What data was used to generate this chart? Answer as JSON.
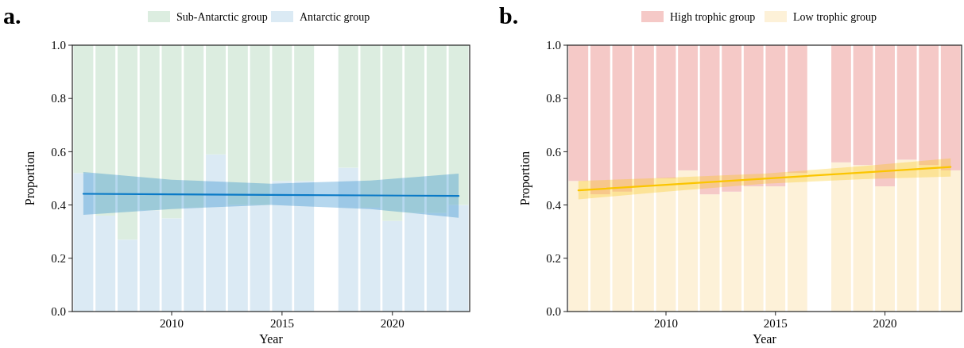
{
  "chart_data": [
    {
      "type": "bar",
      "title": "a.",
      "stacked": true,
      "legend": "top",
      "xlabel": "Year",
      "ylabel": "Proportion",
      "x": [
        2006,
        2007,
        2008,
        2009,
        2010,
        2011,
        2012,
        2013,
        2014,
        2015,
        2016,
        2017,
        2018,
        2019,
        2020,
        2021,
        2022,
        2023
      ],
      "xlim": [
        2005.5,
        2023.5
      ],
      "xticks": [
        2010,
        2015,
        2020
      ],
      "ylim": [
        0,
        1
      ],
      "yticks": [
        {
          "value": 0,
          "label": "0.0"
        },
        {
          "value": 0.2,
          "label": "0.2"
        },
        {
          "value": 0.4,
          "label": "0.4"
        },
        {
          "value": 0.6,
          "label": "0.6"
        },
        {
          "value": 0.8,
          "label": "0.8"
        },
        {
          "value": 1,
          "label": "1.0"
        }
      ],
      "series": [
        {
          "name": "Antarctic group",
          "color": "#dbeaf4",
          "values": [
            0.52,
            0.36,
            0.27,
            0.38,
            0.35,
            0.39,
            0.59,
            0.4,
            0.4,
            0.49,
            0.49,
            null,
            0.54,
            0.39,
            0.34,
            0.37,
            0.37,
            0.4
          ]
        },
        {
          "name": "Sub-Antarctic group",
          "color": "#dcede0",
          "values": [
            0.48,
            0.64,
            0.73,
            0.62,
            0.65,
            0.61,
            0.41,
            0.6,
            0.6,
            0.51,
            0.51,
            null,
            0.46,
            0.61,
            0.66,
            0.63,
            0.63,
            0.6
          ]
        },
        {
          "type": "line",
          "color": "#0a7ac7",
          "x": [
            2006,
            2010,
            2014.5,
            2019,
            2023
          ],
          "values": [
            0.442,
            0.44,
            0.438,
            0.436,
            0.434
          ],
          "lower": [
            0.363,
            0.385,
            0.4,
            0.385,
            0.352
          ],
          "upper": [
            0.524,
            0.495,
            0.48,
            0.492,
            0.518
          ]
        }
      ]
    },
    {
      "type": "bar",
      "title": "b.",
      "stacked": true,
      "legend": "top",
      "xlabel": "Year",
      "ylabel": "Proportion",
      "x": [
        2006,
        2007,
        2008,
        2009,
        2010,
        2011,
        2012,
        2013,
        2014,
        2015,
        2016,
        2017,
        2018,
        2019,
        2020,
        2021,
        2022,
        2023
      ],
      "xlim": [
        2005.5,
        2023.5
      ],
      "xticks": [
        2010,
        2015,
        2020
      ],
      "ylim": [
        0,
        1
      ],
      "yticks": [
        {
          "value": 0,
          "label": "0.0"
        },
        {
          "value": 0.2,
          "label": "0.2"
        },
        {
          "value": 0.4,
          "label": "0.4"
        },
        {
          "value": 0.6,
          "label": "0.6"
        },
        {
          "value": 0.8,
          "label": "0.8"
        },
        {
          "value": 1,
          "label": "1.0"
        }
      ],
      "series": [
        {
          "name": "Low trophic group",
          "color": "#fdf1d8",
          "values": [
            0.49,
            0.44,
            0.45,
            0.47,
            0.5,
            0.53,
            0.44,
            0.45,
            0.47,
            0.47,
            0.52,
            null,
            0.56,
            0.55,
            0.47,
            0.57,
            0.55,
            0.53
          ]
        },
        {
          "name": "High trophic group",
          "color": "#f5c9c7",
          "values": [
            0.51,
            0.56,
            0.55,
            0.53,
            0.5,
            0.47,
            0.56,
            0.55,
            0.53,
            0.53,
            0.48,
            null,
            0.44,
            0.45,
            0.53,
            0.43,
            0.45,
            0.47
          ]
        },
        {
          "type": "line",
          "color": "#fbc500",
          "x": [
            2006,
            2010,
            2014.5,
            2019,
            2023
          ],
          "values": [
            0.455,
            0.476,
            0.499,
            0.522,
            0.543
          ],
          "lower": [
            0.421,
            0.45,
            0.48,
            0.497,
            0.507
          ],
          "upper": [
            0.49,
            0.502,
            0.518,
            0.546,
            0.575
          ]
        }
      ]
    }
  ]
}
